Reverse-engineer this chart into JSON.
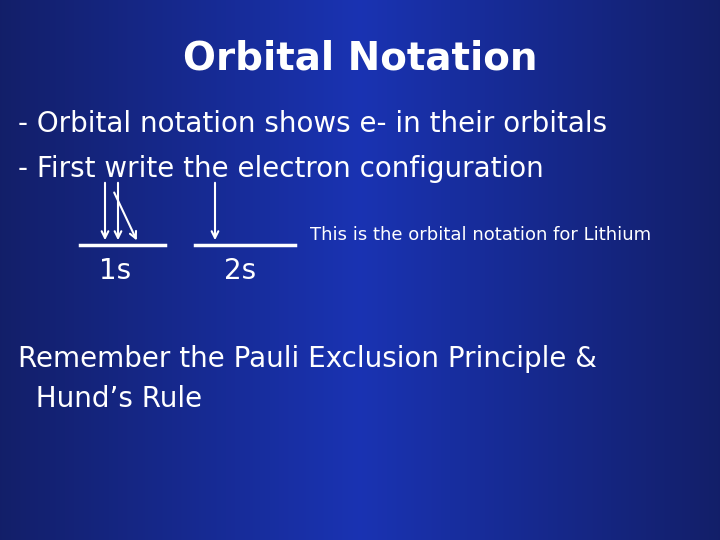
{
  "title": "Orbital Notation",
  "title_fontsize": 28,
  "title_fontweight": "bold",
  "line1": "- Orbital notation shows e- in their orbitals",
  "line2": "- First write the electron configuration",
  "line3_label": "This is the orbital notation for Lithium",
  "orbital_label_1s": "1s",
  "orbital_label_2s": "2s",
  "bottom_text1": "Remember the Pauli Exclusion Principle &",
  "bottom_text2": "  Hund’s Rule",
  "text_color": "#ffffff",
  "body_fontsize": 20,
  "small_fontsize": 13,
  "orbital_fontsize": 20,
  "bg_left": "#000a2e",
  "bg_mid": "#1a3aaa",
  "bg_right": "#000a2e"
}
